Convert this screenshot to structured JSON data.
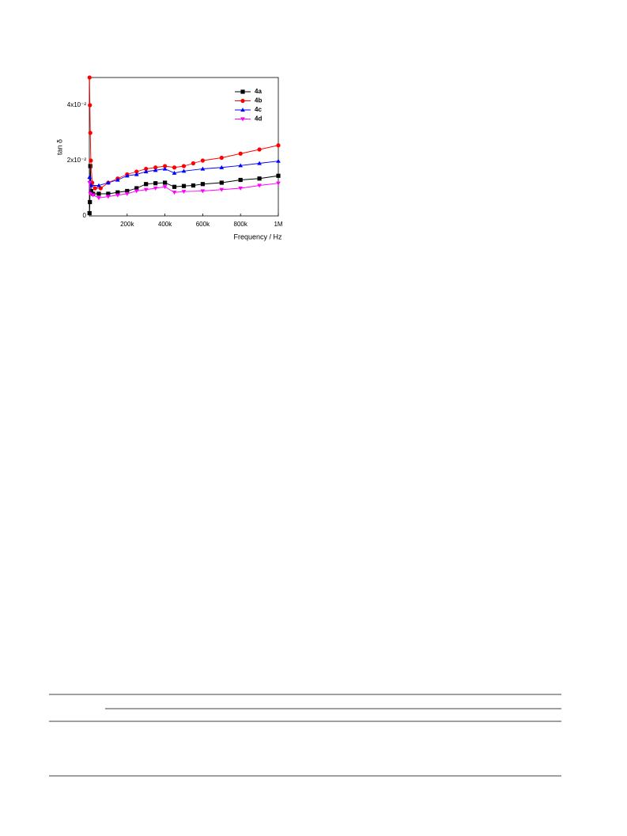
{
  "chart_data": {
    "type": "line",
    "y_label": "tan δ",
    "x_label": "Frequency / Hz",
    "xlim": [
      0,
      1000000
    ],
    "ylim": [
      0,
      0.05
    ],
    "xticks": [
      {
        "value": 200000,
        "label": "200k"
      },
      {
        "value": 400000,
        "label": "400k"
      },
      {
        "value": 600000,
        "label": "600k"
      },
      {
        "value": 800000,
        "label": "800k"
      },
      {
        "value": 1000000,
        "label": "1M"
      }
    ],
    "yticks": [
      0,
      {
        "value": 0.02,
        "label": "2x10⁻²"
      },
      {
        "value": 0.04,
        "label": "4x10⁻²"
      }
    ],
    "legend": "top-right",
    "series": [
      {
        "name": "4a",
        "color": "#000000",
        "marker": "square",
        "x": [
          1000,
          3000,
          5000,
          10000,
          20000,
          50000,
          100000,
          150000,
          200000,
          250000,
          300000,
          350000,
          400000,
          450000,
          500000,
          550000,
          600000,
          700000,
          800000,
          900000,
          1000000
        ],
        "values": [
          0.001,
          0.005,
          0.018,
          0.009,
          0.008,
          0.008,
          0.008,
          0.0085,
          0.009,
          0.01,
          0.0115,
          0.0118,
          0.012,
          0.0105,
          0.0108,
          0.011,
          0.0115,
          0.012,
          0.013,
          0.0135,
          0.0145
        ]
      },
      {
        "name": "4b",
        "color": "#ff0000",
        "marker": "circle",
        "x": [
          1000,
          3000,
          5000,
          8000,
          15000,
          30000,
          60000,
          100000,
          150000,
          200000,
          250000,
          300000,
          350000,
          400000,
          450000,
          500000,
          550000,
          600000,
          700000,
          800000,
          900000,
          1000000
        ],
        "values": [
          0.05,
          0.04,
          0.03,
          0.02,
          0.012,
          0.01,
          0.01,
          0.012,
          0.0135,
          0.015,
          0.016,
          0.017,
          0.0175,
          0.018,
          0.0175,
          0.018,
          0.019,
          0.02,
          0.021,
          0.0225,
          0.024,
          0.0255
        ]
      },
      {
        "name": "4c",
        "color": "#0000ff",
        "marker": "triangle-up",
        "x": [
          1000,
          10000,
          50000,
          100000,
          150000,
          200000,
          250000,
          300000,
          350000,
          400000,
          450000,
          500000,
          600000,
          700000,
          800000,
          900000,
          1000000
        ],
        "values": [
          0.014,
          0.011,
          0.011,
          0.012,
          0.013,
          0.0145,
          0.015,
          0.016,
          0.0165,
          0.017,
          0.0155,
          0.0162,
          0.017,
          0.0175,
          0.0182,
          0.019,
          0.0198
        ]
      },
      {
        "name": "4d",
        "color": "#ff00ff",
        "marker": "triangle-down",
        "x": [
          1000,
          5000,
          20000,
          50000,
          100000,
          150000,
          200000,
          250000,
          300000,
          350000,
          400000,
          450000,
          500000,
          600000,
          700000,
          800000,
          900000,
          1000000
        ],
        "values": [
          0.012,
          0.008,
          0.0075,
          0.0065,
          0.007,
          0.0075,
          0.008,
          0.009,
          0.0095,
          0.01,
          0.0105,
          0.0085,
          0.0088,
          0.009,
          0.0095,
          0.01,
          0.011,
          0.0118
        ]
      }
    ]
  }
}
